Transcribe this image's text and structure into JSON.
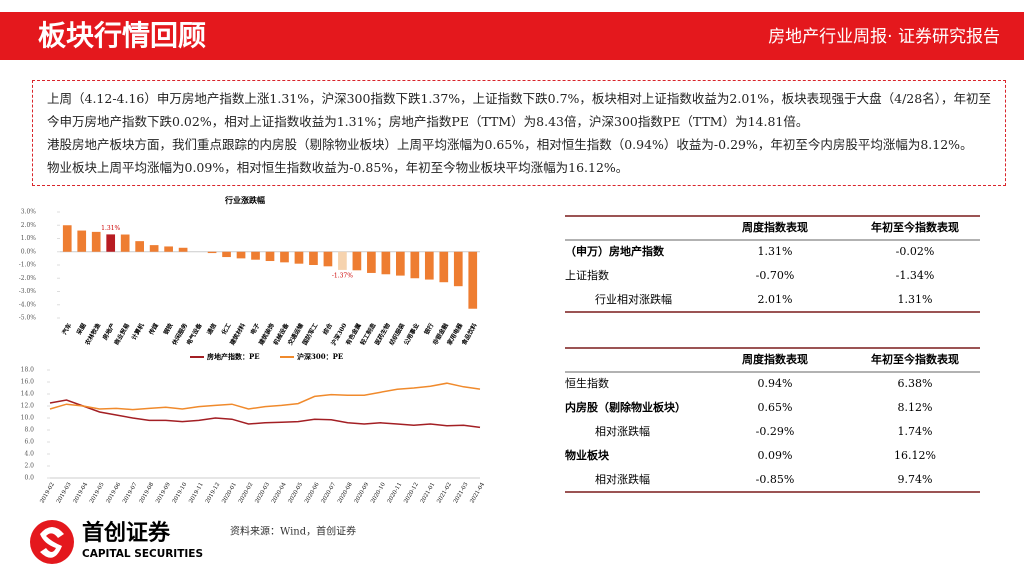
{
  "header": {
    "title": "板块行情回顾",
    "subtitle": "房地产行业周报· 证券研究报告"
  },
  "summary": [
    "上周（4.12-4.16）申万房地产指数上涨1.31%，沪深300指数下跌1.37%，上证指数下跌0.7%，板块相对上证指数收益为2.01%，板块表现强于大盘（4/28名），年初至今申万房地产指数下跌0.02%，相对上证指数收益为1.31%；房地产指数PE（TTM）为8.43倍，沪深300指数PE（TTM）为14.81倍。",
    "港股房地产板块方面，我们重点跟踪的内房股（剔除物业板块）上周平均涨幅为0.65%，相对恒生指数（0.94%）收益为-0.29%，年初至今内房股平均涨幅为8.12%。",
    "物业板块上周平均涨幅为0.09%，相对恒生指数收益为-0.85%，年初至今物业板块平均涨幅为16.12%。"
  ],
  "bar_chart": {
    "type": "bar",
    "title": "行业涨跌幅",
    "categories": [
      "汽车",
      "采掘",
      "农林牧渔",
      "房地产",
      "商业贸易",
      "计算机",
      "传媒",
      "钢铁",
      "休闲服务",
      "电气设备",
      "通信",
      "化工",
      "建筑材料",
      "电子",
      "建筑装饰",
      "机械设备",
      "交通运输",
      "国防军工",
      "综合",
      "沪深300",
      "有色金属",
      "轻工制造",
      "医药生物",
      "纺织服装",
      "公用事业",
      "银行",
      "非银金融",
      "家用电器",
      "食品饮料"
    ],
    "values": [
      2.0,
      1.6,
      1.5,
      1.31,
      1.3,
      0.8,
      0.5,
      0.4,
      0.3,
      0.0,
      -0.1,
      -0.4,
      -0.5,
      -0.6,
      -0.7,
      -0.8,
      -0.9,
      -1.0,
      -1.1,
      -1.37,
      -1.4,
      -1.6,
      -1.7,
      -1.8,
      -2.0,
      -2.1,
      -2.3,
      -2.6,
      -4.3
    ],
    "value_labels": [
      null,
      null,
      null,
      "1.31%",
      null,
      null,
      null,
      null,
      null,
      null,
      null,
      null,
      null,
      null,
      null,
      null,
      null,
      null,
      null,
      "-1.37%",
      null,
      null,
      null,
      null,
      null,
      null,
      null,
      null,
      null
    ],
    "colors": [
      "#ee7d31",
      "#ee7d31",
      "#ee7d31",
      "#b81c22",
      "#ee7d31",
      "#ee7d31",
      "#ee7d31",
      "#ee7d31",
      "#ee7d31",
      "#ee7d31",
      "#ee7d31",
      "#ee7d31",
      "#ee7d31",
      "#ee7d31",
      "#ee7d31",
      "#ee7d31",
      "#ee7d31",
      "#ee7d31",
      "#ee7d31",
      "#f6d3ae",
      "#ee7d31",
      "#ee7d31",
      "#ee7d31",
      "#ee7d31",
      "#ee7d31",
      "#ee7d31",
      "#ee7d31",
      "#ee7d31",
      "#ee7d31"
    ],
    "ylim": [
      -5,
      3
    ],
    "yticks": [
      {
        "value": 3,
        "label": "3.0%"
      },
      {
        "value": 2,
        "label": "2.0%"
      },
      {
        "value": 1,
        "label": "1.0%"
      },
      {
        "value": 0,
        "label": "0.0%"
      },
      {
        "value": -1,
        "label": "-1.0%"
      },
      {
        "value": -2,
        "label": "-2.0%"
      },
      {
        "value": -3,
        "label": "-3.0%"
      },
      {
        "value": -4,
        "label": "-4.0%"
      },
      {
        "value": -5,
        "label": "-5.0%"
      }
    ]
  },
  "line_chart": {
    "type": "line",
    "categories": [
      "2019-02",
      "2019-03",
      "2019-04",
      "2019-05",
      "2019-06",
      "2019-07",
      "2019-08",
      "2019-09",
      "2019-10",
      "2019-11",
      "2019-12",
      "2020-01",
      "2020-02",
      "2020-03",
      "2020-04",
      "2020-05",
      "2020-06",
      "2020-07",
      "2020-08",
      "2020-09",
      "2020-10",
      "2020-11",
      "2020-12",
      "2021-01",
      "2021-02",
      "2021-03",
      "2021-04"
    ],
    "series": [
      {
        "name": "房地产指数：PE",
        "color": "#a31f24",
        "values": [
          12.5,
          13.0,
          12.0,
          11.0,
          10.5,
          10.0,
          9.6,
          9.6,
          9.4,
          9.6,
          10.0,
          9.8,
          9.0,
          9.2,
          9.3,
          9.4,
          9.8,
          9.7,
          9.2,
          9.0,
          9.2,
          9.0,
          8.8,
          9.0,
          8.7,
          8.8,
          8.43
        ]
      },
      {
        "name": "沪深300：PE",
        "color": "#f08a2c",
        "values": [
          11.5,
          12.3,
          12.0,
          11.5,
          11.6,
          11.4,
          11.6,
          11.8,
          11.5,
          11.9,
          12.1,
          12.3,
          11.5,
          11.9,
          12.1,
          12.4,
          13.6,
          13.9,
          13.8,
          13.8,
          14.3,
          14.8,
          15.0,
          15.3,
          15.8,
          15.2,
          14.81
        ]
      }
    ],
    "ylim": [
      0,
      18
    ],
    "yticks": [
      {
        "value": 0,
        "label": "0.0"
      },
      {
        "value": 2,
        "label": "2.0"
      },
      {
        "value": 4,
        "label": "4.0"
      },
      {
        "value": 6,
        "label": "6.0"
      },
      {
        "value": 8,
        "label": "8.0"
      },
      {
        "value": 10,
        "label": "10.0"
      },
      {
        "value": 12,
        "label": "12.0"
      },
      {
        "value": 14,
        "label": "14.0"
      },
      {
        "value": 16,
        "label": "16.0"
      },
      {
        "value": 18,
        "label": "18.0"
      }
    ]
  },
  "table1": {
    "header": [
      "周度指数表现",
      "年初至今指数表现"
    ],
    "rows": [
      {
        "cells": [
          "（申万）房地产指数",
          "1.31%",
          "-0.02%"
        ],
        "bold": true
      },
      {
        "cells": [
          "上证指数",
          "-0.70%",
          "-1.34%"
        ]
      },
      {
        "cells": [
          "行业相对涨跌幅",
          "2.01%",
          "1.31%"
        ],
        "indent": true
      }
    ]
  },
  "table2": {
    "header": [
      "周度指数表现",
      "年初至今指数表现"
    ],
    "rows": [
      {
        "cells": [
          "恒生指数",
          "0.94%",
          "6.38%"
        ]
      },
      {
        "cells": [
          "内房股（剔除物业板块）",
          "0.65%",
          "8.12%"
        ],
        "bold": true
      },
      {
        "cells": [
          "相对涨跌幅",
          "-0.29%",
          "1.74%"
        ],
        "indent": true
      },
      {
        "cells": [
          "物业板块",
          "0.09%",
          "16.12%"
        ],
        "bold": true
      },
      {
        "cells": [
          "相对涨跌幅",
          "-0.85%",
          "9.74%"
        ],
        "indent": true
      }
    ]
  },
  "source": "资料来源：Wind，首创证券",
  "logo": {
    "name": "首创证券",
    "english": "CAPITAL SECURITIES"
  }
}
